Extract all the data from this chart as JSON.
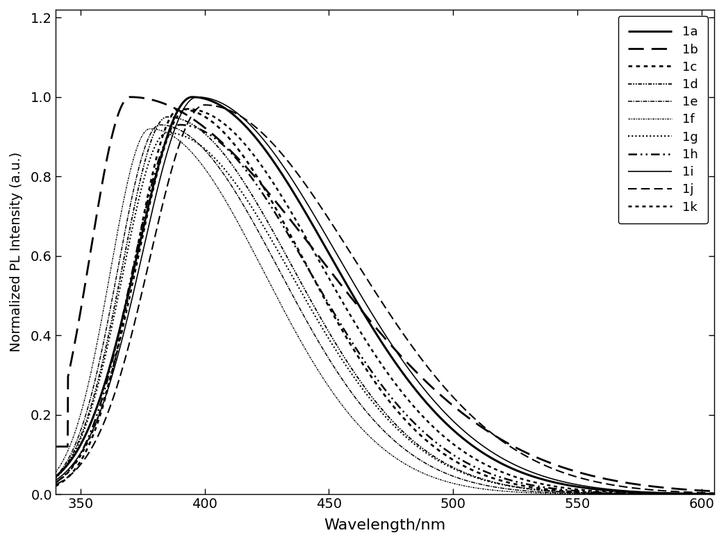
{
  "xlabel": "Wavelength/nm",
  "ylabel": "Normalized PL Intensity (a.u.)",
  "xlim": [
    340,
    605
  ],
  "ylim": [
    0.0,
    1.22
  ],
  "xticks": [
    350,
    400,
    450,
    500,
    550,
    600
  ],
  "yticks": [
    0.0,
    0.2,
    0.4,
    0.6,
    0.8,
    1.0,
    1.2
  ],
  "figsize": [
    10.45,
    7.81
  ],
  "dpi": 100,
  "background_color": "#ffffff",
  "series": [
    {
      "label": "1a",
      "peak": 395,
      "sigma_l": 22,
      "sigma_r": 55,
      "amplitude": 1.0,
      "linestyle_tuple": [
        0,
        []
      ],
      "linewidth": 2.2,
      "color": "#000000"
    },
    {
      "label": "1b",
      "peak": 370,
      "sigma_l": 16,
      "sigma_r": 75,
      "amplitude": 1.0,
      "linestyle_tuple": [
        0,
        [
          8,
          4
        ]
      ],
      "linewidth": 2.0,
      "color": "#000000"
    },
    {
      "label": "1c",
      "peak": 390,
      "sigma_l": 18,
      "sigma_r": 50,
      "amplitude": 0.97,
      "linestyle_tuple": [
        0,
        [
          2,
          2
        ]
      ],
      "linewidth": 2.0,
      "color": "#000000"
    },
    {
      "label": "1d",
      "peak": 385,
      "sigma_l": 18,
      "sigma_r": 50,
      "amplitude": 0.95,
      "linestyle_tuple": [
        0,
        [
          3,
          1,
          1,
          1,
          1,
          1
        ]
      ],
      "linewidth": 1.3,
      "color": "#000000"
    },
    {
      "label": "1e",
      "peak": 382,
      "sigma_l": 17,
      "sigma_r": 48,
      "amplitude": 0.93,
      "linestyle_tuple": [
        0,
        [
          4,
          1,
          1,
          1
        ]
      ],
      "linewidth": 1.1,
      "color": "#000000"
    },
    {
      "label": "1f",
      "peak": 378,
      "sigma_l": 16,
      "sigma_r": 46,
      "amplitude": 0.92,
      "linestyle_tuple": [
        0,
        [
          2,
          1,
          1,
          1
        ]
      ],
      "linewidth": 1.0,
      "color": "#000000"
    },
    {
      "label": "1g",
      "peak": 385,
      "sigma_l": 18,
      "sigma_r": 50,
      "amplitude": 0.91,
      "linestyle_tuple": [
        0,
        [
          1,
          1.5
        ]
      ],
      "linewidth": 1.5,
      "color": "#000000"
    },
    {
      "label": "1h",
      "peak": 390,
      "sigma_l": 19,
      "sigma_r": 52,
      "amplitude": 0.93,
      "linestyle_tuple": [
        0,
        [
          5,
          2,
          1,
          2,
          1,
          2
        ]
      ],
      "linewidth": 1.8,
      "color": "#000000"
    },
    {
      "label": "1i",
      "peak": 397,
      "sigma_l": 22,
      "sigma_r": 56,
      "amplitude": 1.0,
      "linestyle_tuple": [
        0,
        []
      ],
      "linewidth": 1.2,
      "color": "#000000"
    },
    {
      "label": "1j",
      "peak": 400,
      "sigma_l": 22,
      "sigma_r": 60,
      "amplitude": 0.98,
      "linestyle_tuple": [
        0,
        [
          6,
          3
        ]
      ],
      "linewidth": 1.5,
      "color": "#000000"
    },
    {
      "label": "1k",
      "peak": 393,
      "sigma_l": 20,
      "sigma_r": 53,
      "amplitude": 0.97,
      "linestyle_tuple": [
        0,
        [
          2,
          2
        ]
      ],
      "linewidth": 1.8,
      "color": "#000000"
    }
  ],
  "legend_loc": "upper right",
  "legend_fontsize": 13
}
